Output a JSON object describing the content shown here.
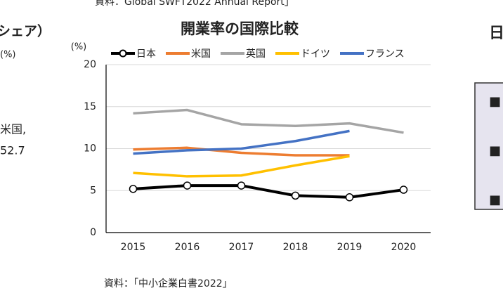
{
  "header_fragment": "資料：Global SWFT2022 Annual Report」",
  "left_fragment": {
    "title": "シェア）",
    "unit": "(%)",
    "lines": [
      "米国,",
      "52.7"
    ]
  },
  "right_fragment": {
    "title": "日",
    "bullets": [
      "■",
      "■",
      "■"
    ]
  },
  "chart_data": {
    "type": "line",
    "title": "開業率の国際比較",
    "y_label": "(%)",
    "categories": [
      "2015",
      "2016",
      "2017",
      "2018",
      "2019",
      "2020"
    ],
    "series": [
      {
        "name": "日本",
        "color": "#000000",
        "marker": "circle",
        "values": [
          5.2,
          5.6,
          5.6,
          4.4,
          4.2,
          5.1
        ]
      },
      {
        "name": "米国",
        "color": "#ed7d31",
        "values": [
          9.9,
          10.1,
          9.5,
          9.2,
          9.2,
          null
        ]
      },
      {
        "name": "英国",
        "color": "#a5a5a5",
        "values": [
          14.2,
          14.6,
          12.9,
          12.7,
          13.0,
          11.9
        ]
      },
      {
        "name": "ドイツ",
        "color": "#ffc000",
        "values": [
          7.1,
          6.7,
          6.8,
          8.0,
          9.1,
          null
        ]
      },
      {
        "name": "フランス",
        "color": "#4472c4",
        "values": [
          9.4,
          9.8,
          10.0,
          10.9,
          12.1,
          null
        ]
      }
    ],
    "ylim": [
      0,
      20
    ],
    "yticks": [
      0,
      5,
      10,
      15,
      20
    ],
    "grid": true,
    "source": "資料：「中小企業白書2022」"
  }
}
